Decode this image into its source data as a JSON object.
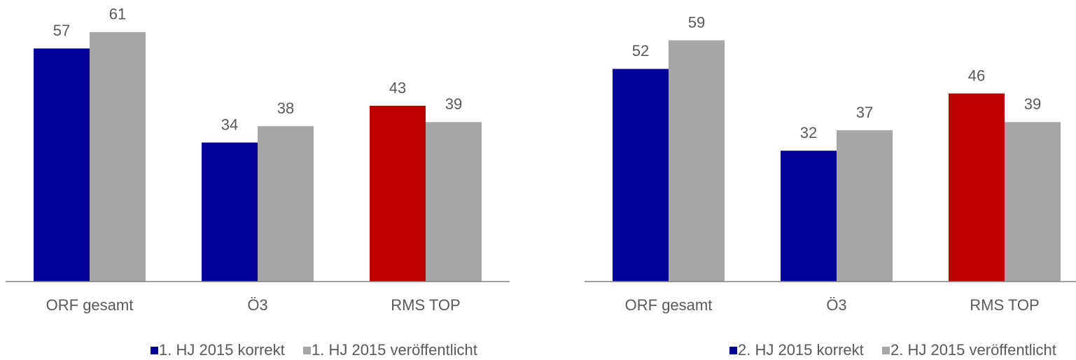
{
  "chart_data": [
    {
      "type": "bar",
      "categories": [
        "ORF gesamt",
        "Ö3",
        "RMS TOP"
      ],
      "series": [
        {
          "name": "1. HJ 2015 korrekt",
          "color": "#000099",
          "point_colors": [
            "#000099",
            "#000099",
            "#c00000"
          ],
          "values": [
            57,
            34,
            43
          ]
        },
        {
          "name": "1. HJ 2015 veröffentlicht",
          "color": "#a6a6a6",
          "values": [
            61,
            38,
            39
          ]
        }
      ],
      "ylim": [
        0,
        68
      ],
      "legend": "bottom"
    },
    {
      "type": "bar",
      "categories": [
        "ORF gesamt",
        "Ö3",
        "RMS TOP"
      ],
      "series": [
        {
          "name": "2. HJ 2015 korrekt",
          "color": "#000099",
          "point_colors": [
            "#000099",
            "#000099",
            "#c00000"
          ],
          "values": [
            52,
            32,
            46
          ]
        },
        {
          "name": "2. HJ 2015 veröffentlicht",
          "color": "#a6a6a6",
          "values": [
            59,
            37,
            39
          ]
        }
      ],
      "ylim": [
        0,
        68
      ],
      "legend": "bottom"
    }
  ]
}
